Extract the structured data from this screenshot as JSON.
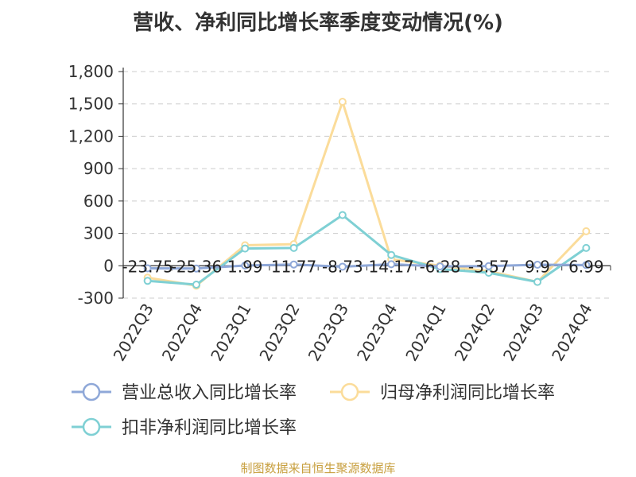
{
  "chart_data": {
    "type": "line",
    "title": "营收、净利同比增长率季度变动情况(%)",
    "categories": [
      "2022Q3",
      "2022Q4",
      "2023Q1",
      "2023Q2",
      "2023Q3",
      "2023Q4",
      "2024Q1",
      "2024Q2",
      "2024Q3",
      "2024Q4"
    ],
    "y_ticks": [
      "1,800",
      "1,500",
      "1,200",
      "900",
      "600",
      "300",
      "0",
      "-300"
    ],
    "ylim": [
      -300,
      1800
    ],
    "grid": true,
    "legend_position": "bottom",
    "series": [
      {
        "name": "营业总收入同比增长率",
        "color": "#8fa8d8",
        "values": [
          -23.75,
          -25.36,
          1.99,
          11.77,
          -8.73,
          14.17,
          -6.28,
          -3.57,
          9.9,
          6.99
        ],
        "labels": [
          "-23.75",
          "-25.36",
          "1.99",
          "11.77",
          "-8.73",
          "14.17",
          "-6.28",
          "-3.57",
          "9.9",
          "6.99"
        ]
      },
      {
        "name": "归母净利润同比增长率",
        "color": "#fbdc9a",
        "values": [
          -110,
          -185,
          190,
          200,
          1520,
          60,
          0,
          -50,
          -150,
          320
        ]
      },
      {
        "name": "扣非净利润同比增长率",
        "color": "#7fd0d4",
        "values": [
          -140,
          -175,
          160,
          165,
          470,
          100,
          -30,
          -65,
          -150,
          165
        ]
      }
    ]
  },
  "source": "制图数据来自恒生聚源数据库"
}
